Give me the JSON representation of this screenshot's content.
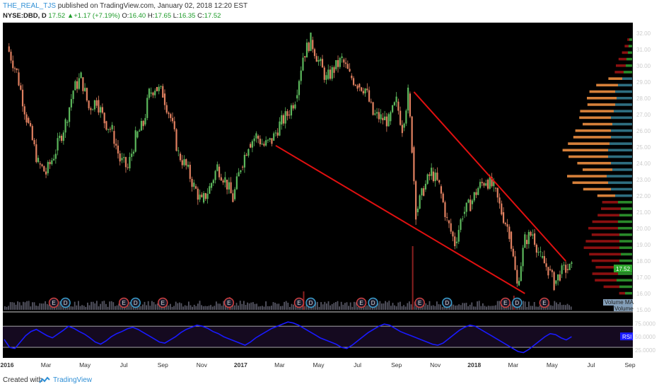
{
  "header": {
    "author": "THE_REAL_TJS",
    "published": " published on TradingView.com, January 02, 2018 12:20 EST",
    "symbol": "NYSE:DBD, D",
    "last": "17.52",
    "change": "+1.17 (+7.19%)",
    "open_label": "O:",
    "open": "16.40",
    "high_label": "H:",
    "high": "17.65",
    "low_label": "L:",
    "low": "16.35",
    "close_label": "C:",
    "close": "17.52"
  },
  "footer": {
    "created": "Created with",
    "brand": "TradingView"
  },
  "colors": {
    "background": "#000000",
    "up": "#5cb85c",
    "down": "#e08060",
    "trendline": "#e01010",
    "rsi_line": "#1a1aff",
    "volume_profile_orange": "#d6803a",
    "volume_profile_teal": "#2e6e80",
    "volume_profile_green": "#2a8a2a",
    "volume_profile_red": "#8b1010",
    "axis_text": "#cccccc"
  },
  "chart_data": {
    "type": "candlestick",
    "price_axis_ticks": [
      "32.00",
      "31.00",
      "30.00",
      "29.00",
      "28.00",
      "27.00",
      "26.00",
      "25.00",
      "24.00",
      "23.00",
      "22.00",
      "21.00",
      "20.00",
      "19.00",
      "18.00",
      "17.00",
      "16.00",
      "15.00"
    ],
    "ylim": [
      15,
      32.4
    ],
    "last_price_label": "17.52",
    "time_axis_ticks": [
      "2016",
      "Mar",
      "May",
      "Jul",
      "Sep",
      "Nov",
      "2017",
      "Mar",
      "May",
      "Jul",
      "Sep",
      "Nov",
      "2018",
      "Mar",
      "May",
      "Jul",
      "Sep"
    ],
    "price_path": [
      [
        0,
        31.2
      ],
      [
        0.5,
        29.6
      ],
      [
        1,
        26.8
      ],
      [
        1.6,
        24.0
      ],
      [
        2,
        23.4
      ],
      [
        2.5,
        24.8
      ],
      [
        3,
        26.5
      ],
      [
        3.4,
        28.5
      ],
      [
        3.8,
        29.3
      ],
      [
        4.2,
        27.4
      ],
      [
        4.6,
        27.9
      ],
      [
        5,
        26.6
      ],
      [
        5.4,
        26.0
      ],
      [
        5.8,
        24.2
      ],
      [
        6.2,
        23.7
      ],
      [
        6.6,
        25.6
      ],
      [
        7,
        26.4
      ],
      [
        7.3,
        28.3
      ],
      [
        7.6,
        28.7
      ],
      [
        8,
        28.3
      ],
      [
        8.4,
        26.8
      ],
      [
        8.8,
        24.6
      ],
      [
        9.2,
        23.8
      ],
      [
        9.6,
        22.6
      ],
      [
        10,
        21.6
      ],
      [
        10.4,
        22.5
      ],
      [
        10.8,
        23.8
      ],
      [
        11.2,
        23.0
      ],
      [
        11.6,
        21.8
      ],
      [
        12,
        23.8
      ],
      [
        12.4,
        25.2
      ],
      [
        12.8,
        25.7
      ],
      [
        13.2,
        25.1
      ],
      [
        13.6,
        25.4
      ],
      [
        14,
        26.4
      ],
      [
        14.4,
        27.0
      ],
      [
        14.8,
        28.0
      ],
      [
        15.2,
        30.6
      ],
      [
        15.6,
        31.6
      ],
      [
        16,
        30.3
      ],
      [
        16.4,
        29.2
      ],
      [
        16.8,
        29.8
      ],
      [
        17.2,
        30.4
      ],
      [
        17.6,
        29.4
      ],
      [
        18,
        28.9
      ],
      [
        18.4,
        28.6
      ],
      [
        18.8,
        27.0
      ],
      [
        19.2,
        26.8
      ],
      [
        19.6,
        26.6
      ],
      [
        20,
        27.8
      ],
      [
        20.3,
        26.2
      ],
      [
        20.6,
        28.3
      ],
      [
        20.8,
        25.0
      ],
      [
        21,
        21.0
      ],
      [
        21.4,
        22.4
      ],
      [
        21.8,
        23.5
      ],
      [
        22.2,
        22.6
      ],
      [
        22.6,
        20.5
      ],
      [
        23,
        19.1
      ],
      [
        23.4,
        20.9
      ],
      [
        23.8,
        21.5
      ],
      [
        24.2,
        22.5
      ],
      [
        24.6,
        23.0
      ],
      [
        25,
        22.5
      ],
      [
        25.4,
        21.0
      ],
      [
        25.8,
        19.8
      ],
      [
        26.2,
        16.5
      ],
      [
        26.6,
        19.3
      ],
      [
        27,
        19.7
      ],
      [
        27.4,
        18.2
      ],
      [
        27.8,
        17.5
      ],
      [
        28.1,
        16.6
      ],
      [
        28.4,
        17.2
      ],
      [
        28.7,
        17.5
      ],
      [
        29,
        17.52
      ]
    ],
    "trendlines": [
      {
        "from": [
          13.8,
          25.1
        ],
        "to": [
          26.6,
          16.0
        ]
      },
      {
        "from": [
          20.9,
          28.4
        ],
        "to": [
          28.7,
          18.0
        ]
      }
    ],
    "volume_profile": [
      {
        "price": 31.6,
        "a": 2,
        "b": 4,
        "kind": "rg"
      },
      {
        "price": 31.2,
        "a": 4,
        "b": 5,
        "kind": "rg"
      },
      {
        "price": 30.8,
        "a": 6,
        "b": 6,
        "kind": "rg"
      },
      {
        "price": 30.4,
        "a": 8,
        "b": 8,
        "kind": "rg"
      },
      {
        "price": 30.0,
        "a": 10,
        "b": 9,
        "kind": "rg"
      },
      {
        "price": 29.6,
        "a": 9,
        "b": 12,
        "kind": "rg"
      },
      {
        "price": 29.2,
        "a": 14,
        "b": 14,
        "kind": "ot"
      },
      {
        "price": 28.8,
        "a": 22,
        "b": 20,
        "kind": "ot"
      },
      {
        "price": 28.4,
        "a": 26,
        "b": 24,
        "kind": "ot"
      },
      {
        "price": 28.0,
        "a": 30,
        "b": 22,
        "kind": "ot"
      },
      {
        "price": 27.6,
        "a": 28,
        "b": 24,
        "kind": "ot"
      },
      {
        "price": 27.2,
        "a": 34,
        "b": 26,
        "kind": "ot"
      },
      {
        "price": 26.8,
        "a": 32,
        "b": 30,
        "kind": "ot"
      },
      {
        "price": 26.4,
        "a": 30,
        "b": 28,
        "kind": "ot"
      },
      {
        "price": 26.0,
        "a": 36,
        "b": 30,
        "kind": "ot"
      },
      {
        "price": 25.6,
        "a": 38,
        "b": 30,
        "kind": "ot"
      },
      {
        "price": 25.2,
        "a": 42,
        "b": 32,
        "kind": "ot"
      },
      {
        "price": 24.8,
        "a": 46,
        "b": 34,
        "kind": "ot"
      },
      {
        "price": 24.4,
        "a": 40,
        "b": 34,
        "kind": "ot"
      },
      {
        "price": 24.0,
        "a": 34,
        "b": 30,
        "kind": "ot"
      },
      {
        "price": 23.6,
        "a": 30,
        "b": 28,
        "kind": "ot"
      },
      {
        "price": 23.2,
        "a": 40,
        "b": 36,
        "kind": "ot"
      },
      {
        "price": 22.8,
        "a": 36,
        "b": 34,
        "kind": "ot"
      },
      {
        "price": 22.4,
        "a": 28,
        "b": 30,
        "kind": "ot"
      },
      {
        "price": 22.0,
        "a": 18,
        "b": 24,
        "kind": "ot"
      },
      {
        "price": 21.6,
        "a": 16,
        "b": 20,
        "kind": "rg"
      },
      {
        "price": 21.2,
        "a": 20,
        "b": 16,
        "kind": "rg"
      },
      {
        "price": 20.8,
        "a": 22,
        "b": 18,
        "kind": "rg"
      },
      {
        "price": 20.4,
        "a": 26,
        "b": 20,
        "kind": "rg"
      },
      {
        "price": 20.0,
        "a": 30,
        "b": 20,
        "kind": "rg"
      },
      {
        "price": 19.6,
        "a": 28,
        "b": 18,
        "kind": "rg"
      },
      {
        "price": 19.2,
        "a": 34,
        "b": 18,
        "kind": "rg"
      },
      {
        "price": 18.8,
        "a": 36,
        "b": 18,
        "kind": "rg"
      },
      {
        "price": 18.4,
        "a": 32,
        "b": 16,
        "kind": "rg"
      },
      {
        "price": 18.0,
        "a": 28,
        "b": 18,
        "kind": "rg"
      },
      {
        "price": 17.6,
        "a": 24,
        "b": 18,
        "kind": "rg"
      },
      {
        "price": 17.2,
        "a": 26,
        "b": 20,
        "kind": "rg"
      },
      {
        "price": 16.8,
        "a": 22,
        "b": 22,
        "kind": "rg"
      },
      {
        "price": 16.4,
        "a": 16,
        "b": 18,
        "kind": "rg"
      },
      {
        "price": 16.0,
        "a": 6,
        "b": 10,
        "kind": "rg"
      }
    ],
    "earnings_markers": [
      {
        "x": 2.4,
        "label": "E"
      },
      {
        "x": 3.0,
        "label": "D"
      },
      {
        "x": 6.0,
        "label": "E"
      },
      {
        "x": 6.6,
        "label": "D"
      },
      {
        "x": 8.0,
        "label": "E"
      },
      {
        "x": 11.4,
        "label": "E"
      },
      {
        "x": 15.0,
        "label": "E"
      },
      {
        "x": 15.6,
        "label": "D"
      },
      {
        "x": 18.2,
        "label": "E"
      },
      {
        "x": 18.8,
        "label": "D"
      },
      {
        "x": 21.2,
        "label": "E"
      },
      {
        "x": 22.6,
        "label": "D"
      },
      {
        "x": 25.6,
        "label": "E"
      },
      {
        "x": 26.2,
        "label": "D"
      },
      {
        "x": 27.6,
        "label": "E"
      }
    ],
    "volume_labels": [
      "Volume MA",
      "Volume"
    ],
    "rsi": {
      "label": "RSI",
      "ticks": [
        "75.0000",
        "50.0000",
        "25.0000"
      ],
      "levels": [
        70,
        30
      ],
      "ylim": [
        10,
        85
      ],
      "values": [
        45,
        30,
        28,
        40,
        52,
        60,
        64,
        58,
        52,
        48,
        55,
        62,
        70,
        66,
        60,
        55,
        48,
        40,
        36,
        42,
        50,
        56,
        60,
        65,
        68,
        64,
        58,
        52,
        46,
        40,
        38,
        44,
        50,
        58,
        64,
        68,
        72,
        70,
        66,
        60,
        56,
        50,
        46,
        42,
        38,
        34,
        40,
        48,
        54,
        60,
        66,
        70,
        74,
        78,
        76,
        72,
        66,
        60,
        54,
        48,
        44,
        40,
        36,
        30,
        28,
        34,
        42,
        50,
        58,
        64,
        70,
        74,
        72,
        66,
        60,
        56,
        52,
        48,
        44,
        40,
        36,
        34,
        38,
        46,
        54,
        62,
        68,
        72,
        70,
        64,
        58,
        52,
        46,
        40,
        34,
        28,
        22,
        20,
        26,
        34,
        42,
        50,
        56,
        54,
        48,
        44,
        50
      ]
    }
  }
}
